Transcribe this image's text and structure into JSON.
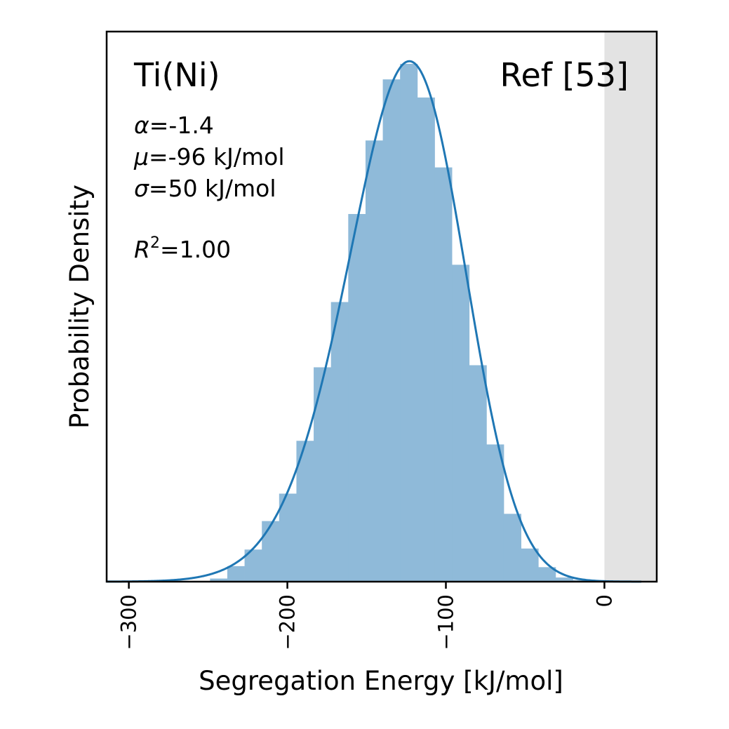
{
  "chart_data": {
    "type": "bar",
    "title": "",
    "xlabel": "Segregation Energy [kJ/mol]",
    "ylabel": "Probability Density",
    "xlim": [
      -314,
      33
    ],
    "ylim": [
      0,
      1.0
    ],
    "y_ticks_shown": false,
    "x_ticks": [
      -300,
      -200,
      -100,
      0
    ],
    "x_tick_labels": [
      "−300",
      "−200",
      "−100",
      "0"
    ],
    "shaded_region": {
      "x_from": 0,
      "x_to": 33,
      "color": "#e3e3e3"
    },
    "histogram": {
      "color": "#8fbad9",
      "bin_width": 10.9,
      "bin_starts": [
        -314.2,
        -303.3,
        -292.4,
        -281.5,
        -270.6,
        -259.7,
        -248.8,
        -237.9,
        -227.0,
        -216.1,
        -205.2,
        -194.3,
        -183.4,
        -172.5,
        -161.6,
        -150.7,
        -139.8,
        -128.9,
        -118.0,
        -107.1,
        -96.2,
        -85.3,
        -74.4,
        -63.5,
        -52.6,
        -41.7,
        -30.8,
        -19.9,
        -9.0,
        1.9,
        12.8
      ],
      "values": [
        0.0,
        0.0,
        0.0,
        0.0,
        0.0,
        0.0,
        0.006,
        0.03,
        0.062,
        0.117,
        0.17,
        0.272,
        0.414,
        0.54,
        0.71,
        0.852,
        0.97,
        1.0,
        0.935,
        0.8,
        0.612,
        0.418,
        0.265,
        0.131,
        0.064,
        0.028,
        0.008,
        0.003,
        0.001,
        0.0,
        0.0
      ]
    },
    "fit": {
      "type": "skew-normal",
      "color": "#1f77b4",
      "alpha": -1.4,
      "mu": -96,
      "sigma": 50,
      "peak_x": -122.5,
      "peak_density": 1.005
    },
    "annotations": {
      "system": "Ti(Ni)",
      "reference": "Ref [53]",
      "alpha_label": "=-1.4",
      "mu_label": "=-96 kJ/mol",
      "sigma_label": "=50 kJ/mol",
      "r2_label": "=1.00",
      "alpha_symbol": "α",
      "mu_symbol": "μ",
      "sigma_symbol": "σ",
      "r2_symbol": "R",
      "r2_exp": "2"
    }
  }
}
